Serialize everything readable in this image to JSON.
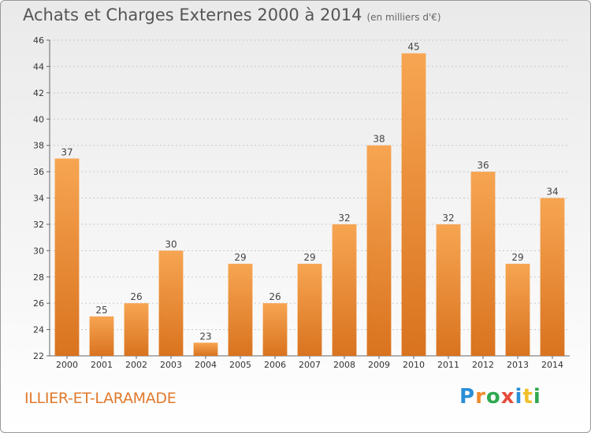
{
  "header": {
    "title": "Achats et Charges Externes 2000 à 2014",
    "subtitle": "(en milliers d'€)"
  },
  "footer": {
    "commune": "ILLIER-ET-LARAMADE",
    "logo_letters": [
      "P",
      "r",
      "o",
      "x",
      "i",
      "t",
      "i"
    ]
  },
  "colors": {
    "bar_light": "#f7a552",
    "bar_dark": "#d9731f",
    "logo_letters": [
      "#2b8fd6",
      "#f08a2c",
      "#2fa84f",
      "#e64c3c",
      "#2b8fd6",
      "#f0c02c",
      "#2fa84f"
    ]
  },
  "chart_data": {
    "type": "bar",
    "categories": [
      "2000",
      "2001",
      "2002",
      "2003",
      "2004",
      "2005",
      "2006",
      "2007",
      "2008",
      "2009",
      "2010",
      "2011",
      "2012",
      "2013",
      "2014"
    ],
    "values": [
      37,
      25,
      26,
      30,
      23,
      29,
      26,
      29,
      32,
      38,
      45,
      32,
      36,
      29,
      34
    ],
    "ylim": [
      22,
      46
    ],
    "yticks": [
      22,
      24,
      26,
      28,
      30,
      32,
      34,
      36,
      38,
      40,
      42,
      44,
      46
    ],
    "grid": true
  }
}
